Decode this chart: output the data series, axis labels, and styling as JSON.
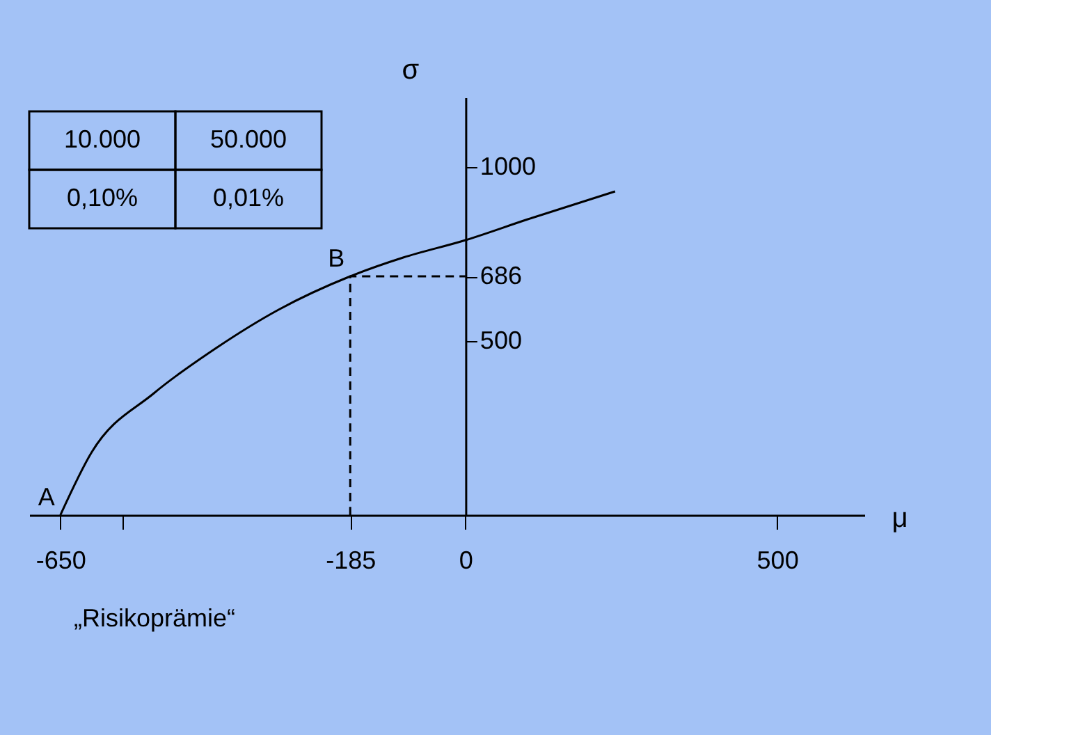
{
  "chart_data": {
    "type": "line",
    "xlabel": "μ",
    "ylabel": "σ",
    "xlim": [
      -700,
      640
    ],
    "ylim": [
      0,
      1200
    ],
    "xticks": [
      -650,
      {
        "value": -550,
        "label": null
      },
      -185,
      0,
      500
    ],
    "yticks": [
      500,
      686,
      1000
    ],
    "grid": false,
    "series": [
      {
        "color": "#000000",
        "line_style": "solid",
        "x": [
          -650,
          -600,
          -500,
          -400,
          -300,
          -185,
          -100,
          0,
          100,
          240
        ],
        "values": [
          0,
          180,
          350,
          480,
          590,
          686,
          740,
          790,
          850,
          930
        ]
      },
      {
        "color": "#000000",
        "line_style": "dashed",
        "x": [
          -185,
          -185,
          0
        ],
        "values": [
          0,
          686,
          686
        ]
      }
    ],
    "annotations": [
      "10.000",
      "50.000",
      "0,10%",
      "0,01%",
      "„Risikoprämie“",
      {
        "text": "A",
        "x": -650,
        "y": 0
      },
      {
        "text": "B",
        "x": -185,
        "y": 686
      }
    ]
  }
}
